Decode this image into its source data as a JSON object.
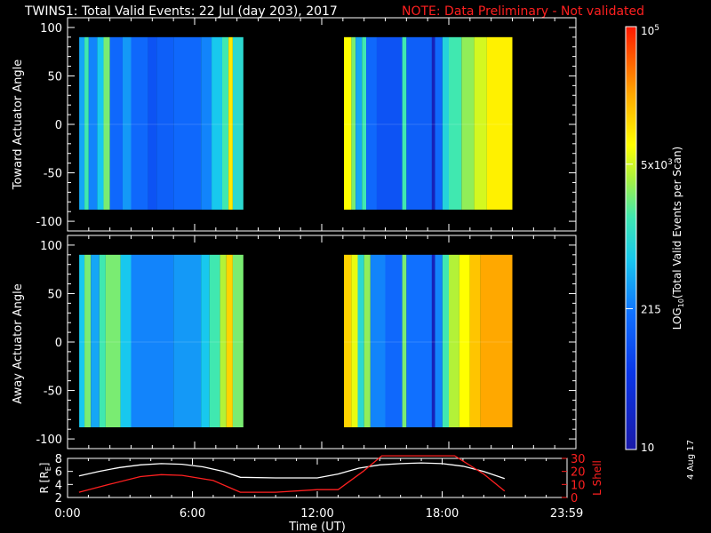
{
  "title": "TWINS1: Total Valid Events: 22 Jul (day 203), 2017",
  "note": "NOTE: Data Preliminary - Not validated",
  "datestamp": "4 Aug 17",
  "colors": {
    "ephemeris_r": "#ffffff",
    "l_shell": "#ff2020",
    "note": "#ff2020"
  },
  "chart_data": [
    {
      "type": "heatmap",
      "ylabel": "Toward Actuator Angle",
      "ylim": [
        -110,
        110
      ],
      "yticks": [
        100,
        50,
        0,
        -50,
        -100
      ],
      "xlim": [
        0,
        24
      ],
      "data_intervals_hours": [
        [
          0.55,
          8.3
        ],
        [
          13.05,
          21.0
        ]
      ],
      "y_extent": [
        -88,
        90
      ],
      "color_scale": "log10 total valid events per scan, 10 to 100000",
      "column_levels": [
        [
          0.55,
          0.8,
          0.4
        ],
        [
          0.8,
          1.0,
          0.55
        ],
        [
          1.0,
          1.4,
          0.35
        ],
        [
          1.4,
          1.7,
          0.45
        ],
        [
          1.7,
          2.0,
          0.6
        ],
        [
          2.0,
          2.6,
          0.3
        ],
        [
          2.6,
          3.0,
          0.38
        ],
        [
          3.0,
          3.8,
          0.3
        ],
        [
          3.8,
          4.2,
          0.25
        ],
        [
          4.2,
          5.0,
          0.28
        ],
        [
          5.0,
          6.3,
          0.3
        ],
        [
          6.3,
          6.8,
          0.35
        ],
        [
          6.8,
          7.3,
          0.45
        ],
        [
          7.3,
          7.6,
          0.55
        ],
        [
          7.6,
          7.8,
          0.75
        ],
        [
          7.8,
          8.3,
          0.5
        ],
        [
          13.05,
          13.4,
          0.72
        ],
        [
          13.4,
          13.6,
          0.6
        ],
        [
          13.6,
          13.9,
          0.4
        ],
        [
          13.9,
          14.1,
          0.55
        ],
        [
          14.1,
          14.6,
          0.3
        ],
        [
          14.6,
          15.8,
          0.25
        ],
        [
          15.8,
          16.0,
          0.55
        ],
        [
          16.0,
          17.2,
          0.28
        ],
        [
          17.2,
          17.35,
          0.05
        ],
        [
          17.35,
          17.7,
          0.3
        ],
        [
          17.7,
          18.0,
          0.48
        ],
        [
          18.0,
          18.6,
          0.55
        ],
        [
          18.6,
          19.2,
          0.62
        ],
        [
          19.2,
          19.8,
          0.68
        ],
        [
          19.8,
          21.0,
          0.74
        ]
      ]
    },
    {
      "type": "heatmap",
      "ylabel": "Away Actuator Angle",
      "ylim": [
        -110,
        110
      ],
      "yticks": [
        100,
        50,
        0,
        -50,
        -100
      ],
      "xlim": [
        0,
        24
      ],
      "data_intervals_hours": [
        [
          0.55,
          8.3
        ],
        [
          13.05,
          21.0
        ]
      ],
      "y_extent": [
        -88,
        90
      ],
      "color_scale": "log10 total valid events per scan, 10 to 100000",
      "column_levels": [
        [
          0.55,
          0.8,
          0.45
        ],
        [
          0.8,
          1.1,
          0.6
        ],
        [
          1.1,
          1.5,
          0.4
        ],
        [
          1.5,
          1.8,
          0.55
        ],
        [
          1.8,
          2.5,
          0.6
        ],
        [
          2.5,
          3.0,
          0.45
        ],
        [
          3.0,
          5.0,
          0.35
        ],
        [
          5.0,
          6.3,
          0.38
        ],
        [
          6.3,
          6.7,
          0.45
        ],
        [
          6.7,
          7.2,
          0.55
        ],
        [
          7.2,
          7.5,
          0.65
        ],
        [
          7.5,
          7.8,
          0.78
        ],
        [
          7.8,
          8.3,
          0.6
        ],
        [
          13.05,
          13.4,
          0.78
        ],
        [
          13.4,
          13.7,
          0.7
        ],
        [
          13.7,
          14.0,
          0.5
        ],
        [
          14.0,
          14.3,
          0.62
        ],
        [
          14.3,
          15.0,
          0.35
        ],
        [
          15.0,
          15.8,
          0.3
        ],
        [
          15.8,
          16.0,
          0.6
        ],
        [
          16.0,
          17.2,
          0.32
        ],
        [
          17.2,
          17.35,
          0.05
        ],
        [
          17.35,
          17.7,
          0.35
        ],
        [
          17.7,
          18.0,
          0.55
        ],
        [
          18.0,
          18.5,
          0.65
        ],
        [
          18.5,
          19.0,
          0.72
        ],
        [
          19.0,
          19.5,
          0.8
        ],
        [
          19.5,
          21.0,
          0.84
        ]
      ]
    },
    {
      "type": "line",
      "xlabel": "Time (UT)",
      "ylabel_left": "R [R",
      "ylabel_left_sub": "E",
      "ylabel_left_end": "]",
      "ylabel_right": "L Shell",
      "xticks": [
        "0:00",
        "6:00",
        "12:00",
        "18:00",
        "23:59"
      ],
      "xtick_hours": [
        0,
        6,
        12,
        18,
        23.983
      ],
      "xlim": [
        0,
        24
      ],
      "ylim_left": [
        2,
        8
      ],
      "yticks_left": [
        8,
        6,
        4,
        2
      ],
      "ylim_right": [
        0,
        30
      ],
      "yticks_right": [
        30,
        20,
        10,
        0
      ],
      "series": [
        {
          "axis": "left",
          "x": [
            0.55,
            1.5,
            2.5,
            3.5,
            4.5,
            5.5,
            6.5,
            7.5,
            8.3,
            10.0,
            12.0,
            13.0,
            14.0,
            15.0,
            16.0,
            17.0,
            18.0,
            19.0,
            20.0,
            21.0
          ],
          "y": [
            5.3,
            6.0,
            6.6,
            7.0,
            7.2,
            7.1,
            6.7,
            6.0,
            5.1,
            5.0,
            5.0,
            5.6,
            6.5,
            7.0,
            7.2,
            7.3,
            7.2,
            6.8,
            6.0,
            4.9
          ]
        },
        {
          "axis": "right",
          "x": [
            0.55,
            2.0,
            3.5,
            4.5,
            5.5,
            7.0,
            8.3,
            10.0,
            12.0,
            13.0,
            14.2,
            15.1,
            18.6,
            20.0,
            21.0
          ],
          "y": [
            4,
            10,
            16,
            17.5,
            17,
            13,
            4,
            4,
            6,
            6,
            20,
            32,
            32,
            18,
            5
          ]
        }
      ]
    },
    {
      "type": "colorbar",
      "label": "LOG",
      "label_sub": "10",
      "label_end": "(Total Valid Events per Scan)",
      "range": [
        10,
        100000
      ],
      "ticks": [
        {
          "value": 100000,
          "label": "10",
          "sup": "5"
        },
        {
          "value": 5000,
          "label": "5x10",
          "sup": "3"
        },
        {
          "value": 215,
          "label": "215",
          "sup": ""
        },
        {
          "value": 10,
          "label": "10",
          "sup": ""
        }
      ]
    }
  ]
}
